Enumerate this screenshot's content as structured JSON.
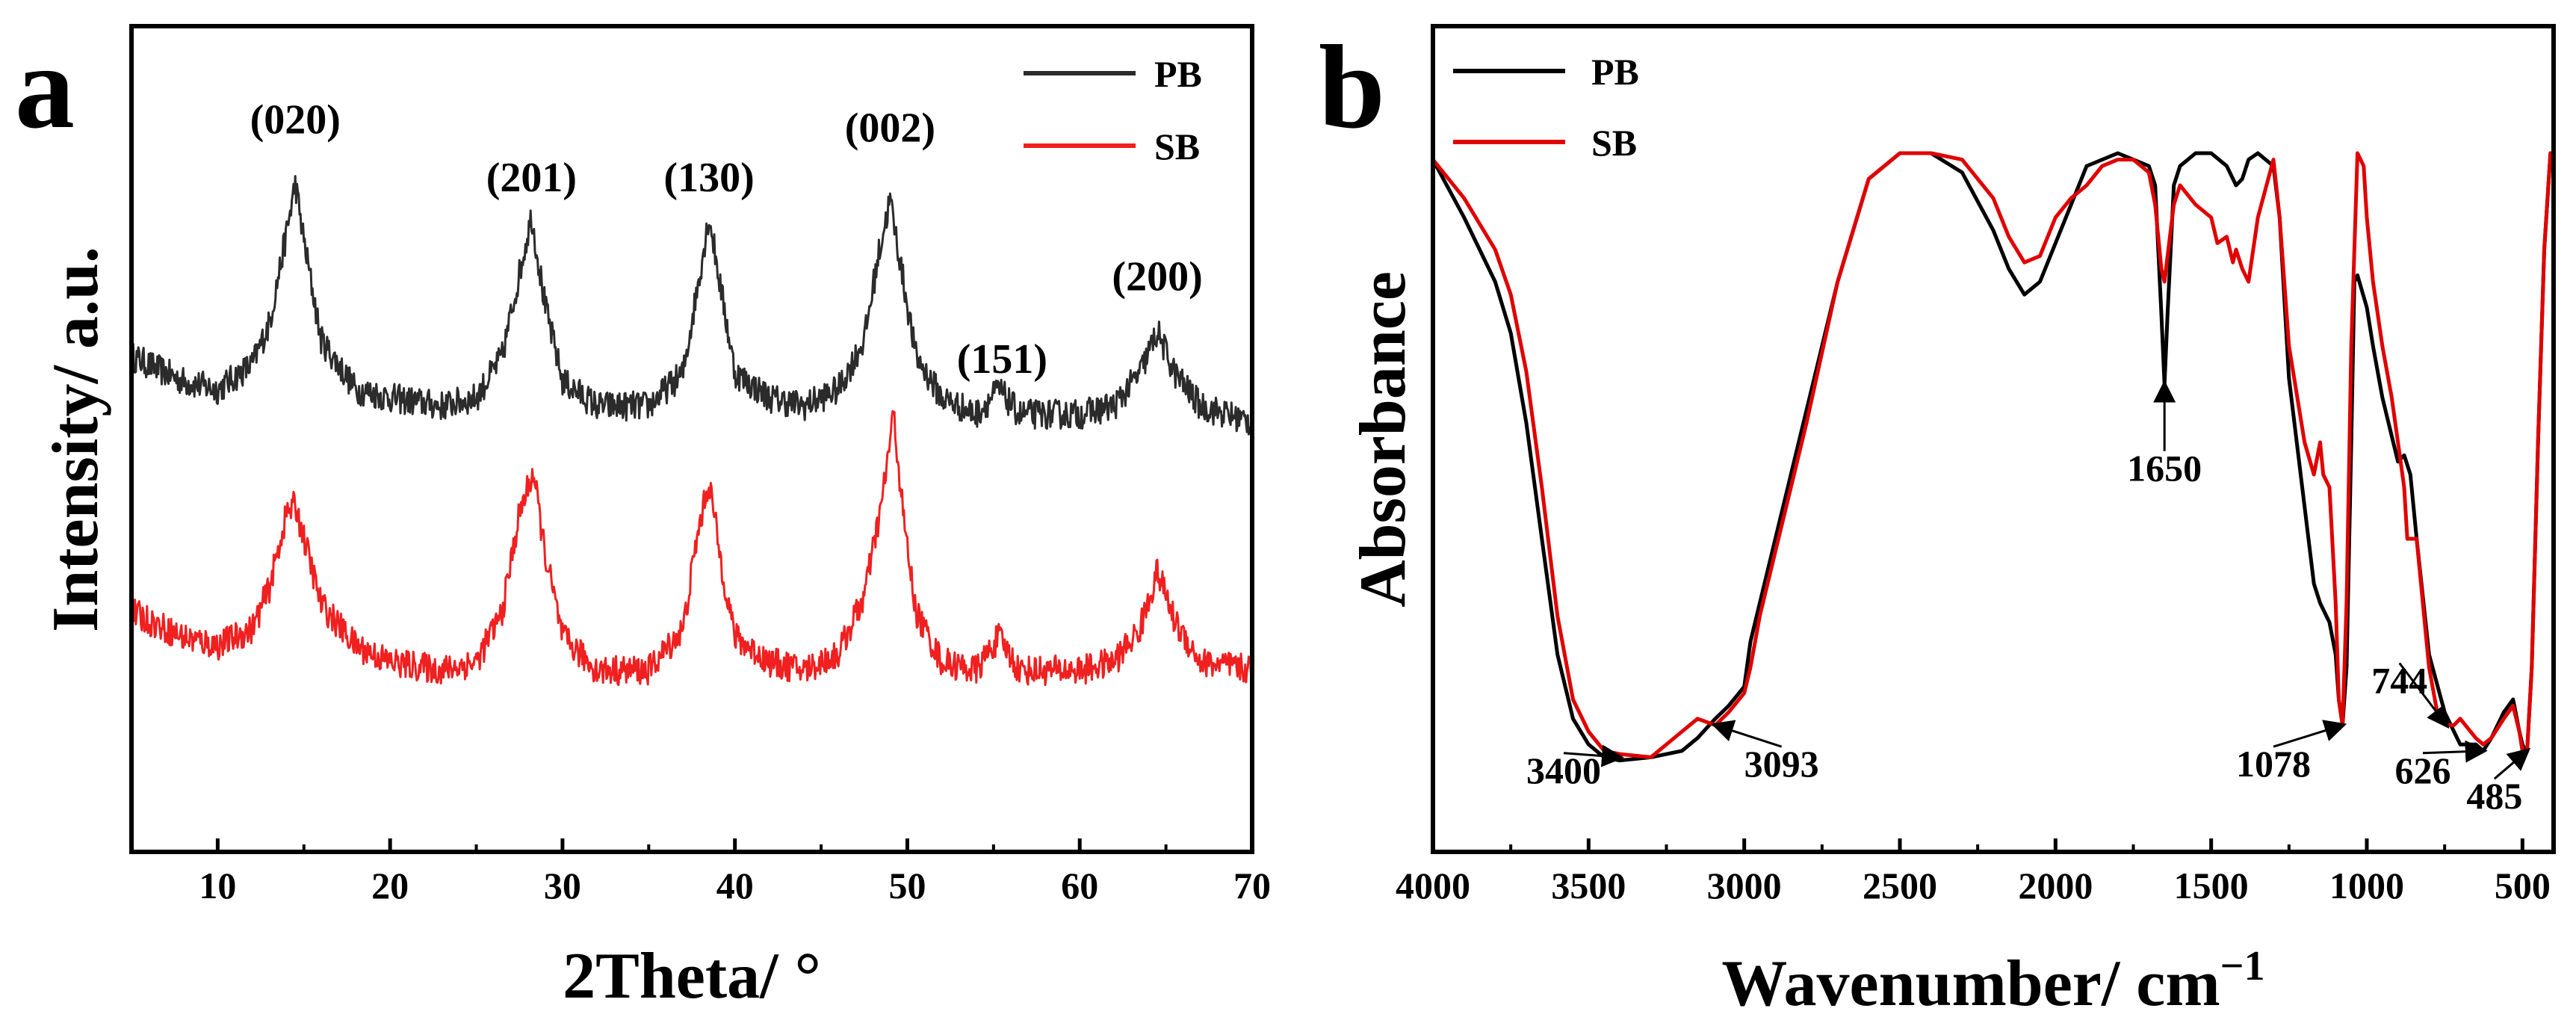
{
  "figure": {
    "panel_a_letter": "a",
    "panel_b_letter": "b"
  },
  "colors": {
    "PB": "#2b2b2b",
    "SB": "#f02020",
    "PB_b": "#000000",
    "SB_b": "#e00000"
  },
  "chart_data": [
    {
      "type": "line",
      "panel": "a",
      "xlabel": "2Theta/ °",
      "ylabel": "Intensity/ a.u.",
      "xlim": [
        5,
        70
      ],
      "ylim": [
        0,
        1
      ],
      "xticks": [
        10,
        20,
        30,
        40,
        50,
        60,
        70
      ],
      "legend": [
        {
          "name": "PB"
        },
        {
          "name": "SB"
        }
      ],
      "peak_labels": [
        {
          "label": "(020)",
          "x": 14.5,
          "y": 0.87
        },
        {
          "label": "(201)",
          "x": 28.2,
          "y": 0.8
        },
        {
          "label": "(130)",
          "x": 38.5,
          "y": 0.8
        },
        {
          "label": "(002)",
          "x": 49.0,
          "y": 0.86
        },
        {
          "label": "(151)",
          "x": 55.5,
          "y": 0.58
        },
        {
          "label": "(200)",
          "x": 64.5,
          "y": 0.68
        }
      ],
      "series": [
        {
          "name": "PB",
          "color": "#2b2b2b",
          "noise": 0.018,
          "x": [
            5,
            8,
            10,
            12,
            13,
            14,
            14.5,
            15,
            16,
            18,
            20,
            23,
            25,
            26.5,
            27.5,
            28.2,
            29,
            30,
            32,
            35,
            37,
            37.8,
            38.5,
            39.2,
            40,
            42,
            44,
            46,
            47.5,
            48.3,
            49,
            49.7,
            50.5,
            52,
            54,
            55.3,
            56.5,
            58,
            60,
            62,
            63.5,
            64.5,
            65.5,
            67,
            70
          ],
          "y": [
            0.6,
            0.57,
            0.56,
            0.59,
            0.64,
            0.75,
            0.81,
            0.74,
            0.62,
            0.56,
            0.55,
            0.54,
            0.55,
            0.6,
            0.7,
            0.77,
            0.66,
            0.57,
            0.54,
            0.54,
            0.58,
            0.68,
            0.77,
            0.68,
            0.58,
            0.55,
            0.54,
            0.56,
            0.62,
            0.72,
            0.79,
            0.7,
            0.6,
            0.55,
            0.53,
            0.56,
            0.53,
            0.53,
            0.53,
            0.54,
            0.58,
            0.63,
            0.58,
            0.54,
            0.52
          ]
        },
        {
          "name": "SB",
          "color": "#f02020",
          "noise": 0.018,
          "x": [
            5,
            8,
            10,
            12,
            13,
            14,
            14.5,
            15,
            16,
            18,
            20,
            23,
            25,
            26.5,
            27.5,
            28.3,
            29,
            30,
            32,
            35,
            37,
            37.8,
            38.5,
            39.2,
            40,
            42,
            44,
            46,
            47.5,
            48.5,
            49.2,
            49.8,
            50.5,
            52,
            54,
            55.3,
            56.5,
            58,
            60,
            62,
            63.5,
            64.5,
            65.5,
            67,
            70
          ],
          "y": [
            0.29,
            0.26,
            0.25,
            0.27,
            0.32,
            0.41,
            0.42,
            0.38,
            0.3,
            0.25,
            0.23,
            0.22,
            0.23,
            0.29,
            0.41,
            0.46,
            0.36,
            0.26,
            0.22,
            0.22,
            0.27,
            0.38,
            0.45,
            0.35,
            0.26,
            0.23,
            0.22,
            0.24,
            0.31,
            0.42,
            0.53,
            0.4,
            0.29,
            0.23,
            0.22,
            0.26,
            0.22,
            0.22,
            0.22,
            0.23,
            0.27,
            0.34,
            0.28,
            0.23,
            0.22
          ]
        }
      ]
    },
    {
      "type": "line",
      "panel": "b",
      "xlabel": "Wavenumber/ cm",
      "xlabel_sup": "−1",
      "ylabel": "Absorbance",
      "xlim": [
        4000,
        400
      ],
      "ylim": [
        0,
        1
      ],
      "xticks": [
        4000,
        3500,
        3000,
        2500,
        2000,
        1500,
        1000,
        500
      ],
      "legend": [
        {
          "name": "PB"
        },
        {
          "name": "SB"
        }
      ],
      "annotations": [
        {
          "label": "3400",
          "x": 3400,
          "y": 0.06,
          "tx": 3580,
          "ty": 0.02
        },
        {
          "label": "3093",
          "x": 3093,
          "y": 0.11,
          "tx": 2880,
          "ty": 0.03
        },
        {
          "label": "1650",
          "x": 1650,
          "y": 0.64,
          "tx": 1650,
          "ty": 0.49
        },
        {
          "label": "1078",
          "x": 1078,
          "y": 0.11,
          "tx": 1300,
          "ty": 0.03
        },
        {
          "label": "744",
          "x": 744,
          "y": 0.11,
          "tx": 895,
          "ty": 0.16
        },
        {
          "label": "626",
          "x": 626,
          "y": 0.07,
          "tx": 820,
          "ty": 0.02
        },
        {
          "label": "485",
          "x": 485,
          "y": 0.07,
          "tx": 590,
          "ty": -0.02
        }
      ],
      "series": [
        {
          "name": "PB",
          "color": "#000000",
          "x": [
            4000,
            3900,
            3800,
            3750,
            3700,
            3650,
            3600,
            3550,
            3500,
            3450,
            3400,
            3300,
            3200,
            3150,
            3093,
            3050,
            3000,
            2980,
            2950,
            2900,
            2800,
            2700,
            2600,
            2500,
            2400,
            2300,
            2200,
            2150,
            2100,
            2050,
            2000,
            1950,
            1900,
            1800,
            1750,
            1700,
            1680,
            1660,
            1650,
            1640,
            1620,
            1600,
            1550,
            1500,
            1450,
            1420,
            1400,
            1380,
            1350,
            1300,
            1280,
            1250,
            1200,
            1170,
            1150,
            1120,
            1100,
            1090,
            1078,
            1065,
            1050,
            1040,
            1030,
            1000,
            980,
            950,
            920,
            900,
            880,
            860,
            840,
            800,
            750,
            700,
            650,
            626,
            600,
            560,
            530,
            510,
            500,
            490,
            485,
            470,
            450,
            430,
            410,
            400
          ],
          "y": [
            0.99,
            0.9,
            0.8,
            0.72,
            0.58,
            0.4,
            0.22,
            0.12,
            0.08,
            0.06,
            0.055,
            0.06,
            0.07,
            0.09,
            0.12,
            0.14,
            0.17,
            0.24,
            0.3,
            0.4,
            0.6,
            0.8,
            0.96,
            1.0,
            1.0,
            0.97,
            0.88,
            0.82,
            0.78,
            0.8,
            0.86,
            0.92,
            0.98,
            1.0,
            0.99,
            0.98,
            0.95,
            0.75,
            0.64,
            0.75,
            0.95,
            0.98,
            1.0,
            1.0,
            0.98,
            0.95,
            0.96,
            0.99,
            1.0,
            0.98,
            0.9,
            0.65,
            0.45,
            0.33,
            0.3,
            0.27,
            0.22,
            0.15,
            0.11,
            0.2,
            0.55,
            0.8,
            0.81,
            0.76,
            0.7,
            0.62,
            0.56,
            0.52,
            0.53,
            0.5,
            0.4,
            0.22,
            0.13,
            0.08,
            0.08,
            0.07,
            0.09,
            0.13,
            0.15,
            0.1,
            0.08,
            0.07,
            0.07,
            0.2,
            0.55,
            0.85,
            1.0,
            1.0
          ]
        },
        {
          "name": "SB",
          "color": "#e00000",
          "x": [
            4000,
            3900,
            3800,
            3750,
            3700,
            3650,
            3600,
            3550,
            3500,
            3450,
            3400,
            3300,
            3200,
            3150,
            3093,
            3050,
            3000,
            2980,
            2950,
            2900,
            2800,
            2700,
            2600,
            2500,
            2400,
            2300,
            2200,
            2150,
            2100,
            2050,
            2000,
            1950,
            1900,
            1850,
            1800,
            1750,
            1700,
            1680,
            1660,
            1650,
            1640,
            1620,
            1600,
            1550,
            1500,
            1480,
            1450,
            1430,
            1420,
            1400,
            1380,
            1350,
            1300,
            1280,
            1250,
            1200,
            1170,
            1150,
            1140,
            1120,
            1100,
            1090,
            1078,
            1065,
            1050,
            1030,
            1010,
            1000,
            980,
            950,
            920,
            900,
            880,
            870,
            860,
            840,
            800,
            770,
            744,
            720,
            700,
            650,
            626,
            600,
            560,
            530,
            510,
            500,
            490,
            485,
            470,
            450,
            430,
            410,
            400
          ],
          "y": [
            0.99,
            0.93,
            0.85,
            0.78,
            0.66,
            0.48,
            0.28,
            0.15,
            0.1,
            0.07,
            0.065,
            0.06,
            0.1,
            0.12,
            0.11,
            0.13,
            0.16,
            0.2,
            0.28,
            0.38,
            0.58,
            0.8,
            0.96,
            1.0,
            1.0,
            0.99,
            0.93,
            0.87,
            0.83,
            0.84,
            0.9,
            0.93,
            0.95,
            0.98,
            0.99,
            0.99,
            0.97,
            0.92,
            0.82,
            0.8,
            0.84,
            0.92,
            0.95,
            0.92,
            0.9,
            0.86,
            0.87,
            0.83,
            0.85,
            0.82,
            0.8,
            0.9,
            0.99,
            0.9,
            0.7,
            0.55,
            0.5,
            0.55,
            0.5,
            0.48,
            0.3,
            0.15,
            0.11,
            0.3,
            0.7,
            1.0,
            0.98,
            0.9,
            0.8,
            0.7,
            0.62,
            0.55,
            0.48,
            0.4,
            0.4,
            0.4,
            0.2,
            0.12,
            0.11,
            0.11,
            0.12,
            0.09,
            0.08,
            0.09,
            0.12,
            0.14,
            0.1,
            0.07,
            0.07,
            0.07,
            0.2,
            0.55,
            0.85,
            1.0,
            1.0
          ]
        }
      ]
    }
  ]
}
